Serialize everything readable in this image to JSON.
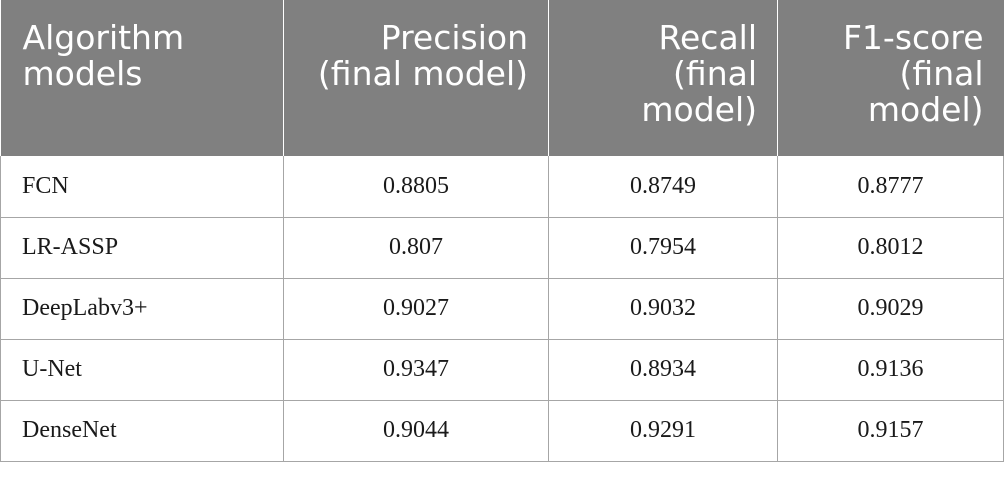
{
  "table": {
    "headers": [
      "Algorithm models",
      "Precision (final model)",
      "Recall (final model)",
      "F1-score (final model)"
    ],
    "header_lines": [
      [
        "Algorithm",
        "models"
      ],
      [
        "Precision",
        "(final model)"
      ],
      [
        "Recall",
        "(final",
        "model)"
      ],
      [
        "F1-score",
        "(final",
        "model)"
      ]
    ],
    "rows": [
      [
        "FCN",
        "0.8805",
        "0.8749",
        "0.8777"
      ],
      [
        "LR-ASSP",
        "0.807",
        "0.7954",
        "0.8012"
      ],
      [
        "DeepLabv3+",
        "0.9027",
        "0.9032",
        "0.9029"
      ],
      [
        "U-Net",
        "0.9347",
        "0.8934",
        "0.9136"
      ],
      [
        "DenseNet",
        "0.9044",
        "0.9291",
        "0.9157"
      ]
    ]
  },
  "colors": {
    "header_bg": "#808080",
    "header_text": "#ffffff",
    "grid": "#a6a6a6"
  }
}
